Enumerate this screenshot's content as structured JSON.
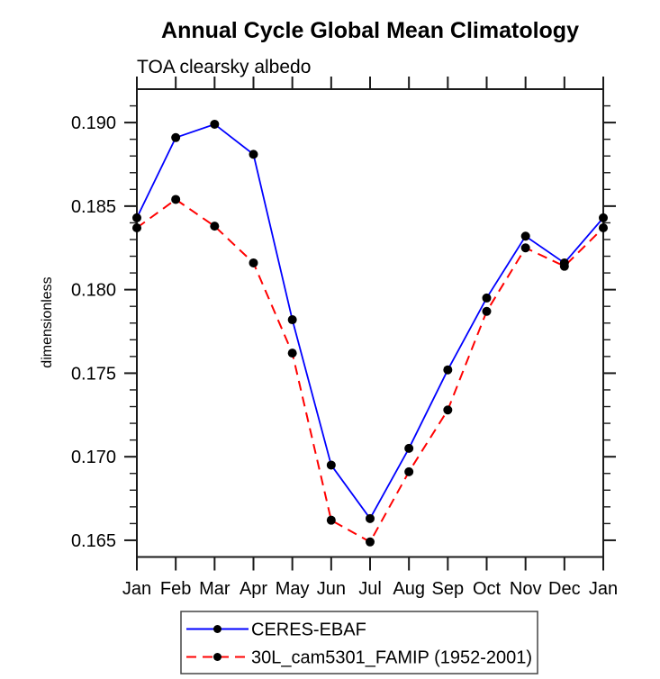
{
  "title": "Annual Cycle Global Mean Climatology",
  "subtitle": "TOA clearsky albedo",
  "colors": {
    "series1": "#0000ff",
    "series2": "#ff0000",
    "marker": "#000000",
    "axis": "#1a1a1a",
    "legend_border": "#444444",
    "background": "#ffffff"
  },
  "legend": {
    "entries": [
      "CERES-EBAF",
      "30L_cam5301_FAMIP (1952-2001)"
    ]
  },
  "chart_data": {
    "type": "line",
    "title": "Annual Cycle Global Mean Climatology",
    "subtitle": "TOA clearsky albedo",
    "xlabel": "",
    "ylabel": "dimensionless",
    "categories": [
      "Jan",
      "Feb",
      "Mar",
      "Apr",
      "May",
      "Jun",
      "Jul",
      "Aug",
      "Sep",
      "Oct",
      "Nov",
      "Dec",
      "Jan"
    ],
    "series": [
      {
        "name": "CERES-EBAF",
        "color": "#0000ff",
        "line_style": "solid",
        "marker": "filled-circle",
        "values": [
          0.1843,
          0.1891,
          0.1899,
          0.1881,
          0.1782,
          0.1695,
          0.1663,
          0.1705,
          0.1752,
          0.1795,
          0.1832,
          0.1816,
          0.1843
        ]
      },
      {
        "name": "30L_cam5301_FAMIP (1952-2001)",
        "color": "#ff0000",
        "line_style": "dashed",
        "marker": "filled-circle",
        "values": [
          0.1837,
          0.1854,
          0.1838,
          0.1816,
          0.1762,
          0.1662,
          0.1649,
          0.1691,
          0.1728,
          0.1787,
          0.1825,
          0.1814,
          0.1837
        ]
      }
    ],
    "ylim": [
      0.164,
      0.192
    ],
    "yticks_major": [
      0.165,
      0.17,
      0.175,
      0.18,
      0.185,
      0.19
    ],
    "ytick_labels": [
      "0.165",
      "0.170",
      "0.175",
      "0.180",
      "0.185",
      "0.190"
    ],
    "ytick_minor_step": 0.001,
    "grid": false,
    "legend_position": "bottom"
  }
}
